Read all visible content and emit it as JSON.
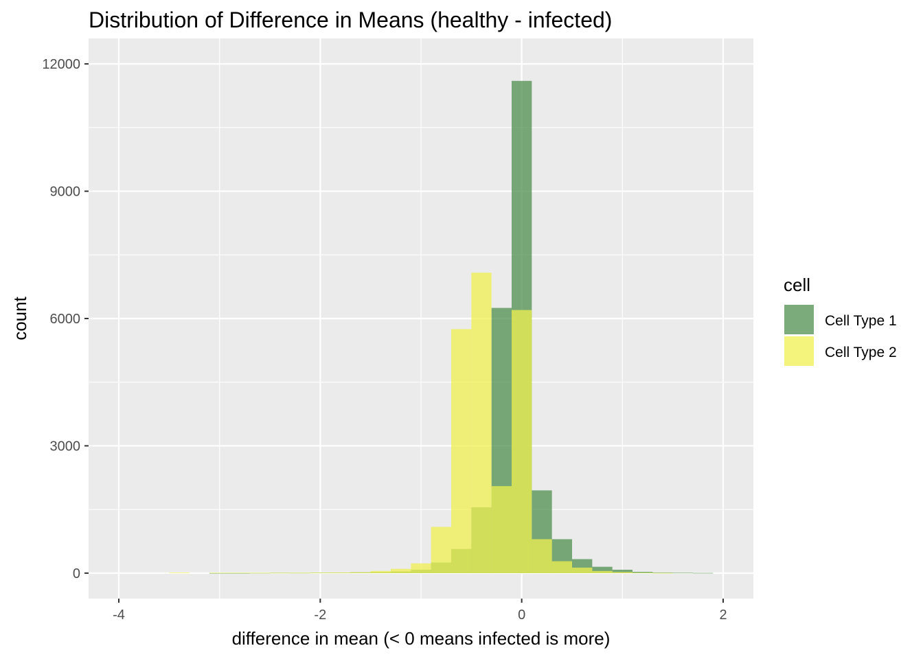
{
  "chart_data": {
    "type": "bar",
    "title": "Distribution of Difference in Means (healthy - infected)",
    "xlabel": "difference in mean (< 0 means infected is more)",
    "ylabel": "count",
    "xlim": [
      -4.3,
      2.3
    ],
    "ylim": [
      -600,
      12600
    ],
    "x_ticks": [
      -4,
      -2,
      0,
      2
    ],
    "x_tick_labels": [
      "-4",
      "-2",
      "0",
      "2"
    ],
    "y_ticks": [
      0,
      3000,
      6000,
      9000,
      12000
    ],
    "y_tick_labels": [
      "0",
      "3000",
      "6000",
      "9000",
      "12000"
    ],
    "grid": true,
    "legend": {
      "title": "cell",
      "position": "right"
    },
    "bin_width": 0.2,
    "series": [
      {
        "name": "Cell Type 1",
        "color": "#4f8f4f",
        "bins": [
          {
            "x0": -3.5,
            "x1": -3.3,
            "count": 0
          },
          {
            "x0": -3.1,
            "x1": -2.9,
            "count": 2
          },
          {
            "x0": -2.9,
            "x1": -2.7,
            "count": 2
          },
          {
            "x0": -2.7,
            "x1": -2.5,
            "count": 5
          },
          {
            "x0": -2.5,
            "x1": -2.3,
            "count": 10
          },
          {
            "x0": -2.3,
            "x1": -2.1,
            "count": 8
          },
          {
            "x0": -2.1,
            "x1": -1.9,
            "count": 12
          },
          {
            "x0": -1.9,
            "x1": -1.7,
            "count": 15
          },
          {
            "x0": -1.7,
            "x1": -1.5,
            "count": 20
          },
          {
            "x0": -1.5,
            "x1": -1.3,
            "count": 25
          },
          {
            "x0": -1.3,
            "x1": -1.1,
            "count": 40
          },
          {
            "x0": -1.1,
            "x1": -0.9,
            "count": 80
          },
          {
            "x0": -0.9,
            "x1": -0.7,
            "count": 250
          },
          {
            "x0": -0.7,
            "x1": -0.5,
            "count": 570
          },
          {
            "x0": -0.5,
            "x1": -0.3,
            "count": 1550
          },
          {
            "x0": -0.3,
            "x1": -0.1,
            "count": 6250
          },
          {
            "x0": -0.1,
            "x1": 0.1,
            "count": 11600
          },
          {
            "x0": 0.1,
            "x1": 0.3,
            "count": 1950
          },
          {
            "x0": 0.3,
            "x1": 0.5,
            "count": 800
          },
          {
            "x0": 0.5,
            "x1": 0.7,
            "count": 330
          },
          {
            "x0": 0.7,
            "x1": 0.9,
            "count": 150
          },
          {
            "x0": 0.9,
            "x1": 1.1,
            "count": 80
          },
          {
            "x0": 1.1,
            "x1": 1.3,
            "count": 30
          },
          {
            "x0": 1.3,
            "x1": 1.5,
            "count": 15
          },
          {
            "x0": 1.5,
            "x1": 1.7,
            "count": 10
          },
          {
            "x0": 1.7,
            "x1": 1.9,
            "count": 5
          }
        ]
      },
      {
        "name": "Cell Type 2",
        "color": "#f0f050",
        "bins": [
          {
            "x0": -3.5,
            "x1": -3.3,
            "count": 15
          },
          {
            "x0": -3.1,
            "x1": -2.9,
            "count": 10
          },
          {
            "x0": -2.9,
            "x1": -2.7,
            "count": 10
          },
          {
            "x0": -2.7,
            "x1": -2.5,
            "count": 8
          },
          {
            "x0": -2.5,
            "x1": -2.3,
            "count": 8
          },
          {
            "x0": -2.3,
            "x1": -2.1,
            "count": 10
          },
          {
            "x0": -2.1,
            "x1": -1.9,
            "count": 12
          },
          {
            "x0": -1.9,
            "x1": -1.7,
            "count": 15
          },
          {
            "x0": -1.7,
            "x1": -1.5,
            "count": 20
          },
          {
            "x0": -1.5,
            "x1": -1.3,
            "count": 50
          },
          {
            "x0": -1.3,
            "x1": -1.1,
            "count": 100
          },
          {
            "x0": -1.1,
            "x1": -0.9,
            "count": 230
          },
          {
            "x0": -0.9,
            "x1": -0.7,
            "count": 1090
          },
          {
            "x0": -0.7,
            "x1": -0.5,
            "count": 5750
          },
          {
            "x0": -0.5,
            "x1": -0.3,
            "count": 7080
          },
          {
            "x0": -0.3,
            "x1": -0.1,
            "count": 2050
          },
          {
            "x0": -0.1,
            "x1": 0.1,
            "count": 6200
          },
          {
            "x0": 0.1,
            "x1": 0.3,
            "count": 800
          },
          {
            "x0": 0.3,
            "x1": 0.5,
            "count": 280
          },
          {
            "x0": 0.5,
            "x1": 0.7,
            "count": 130
          },
          {
            "x0": 0.7,
            "x1": 0.9,
            "count": 50
          },
          {
            "x0": 0.9,
            "x1": 1.1,
            "count": 25
          },
          {
            "x0": 1.1,
            "x1": 1.3,
            "count": 10
          },
          {
            "x0": 1.3,
            "x1": 1.5,
            "count": 5
          }
        ]
      }
    ]
  }
}
